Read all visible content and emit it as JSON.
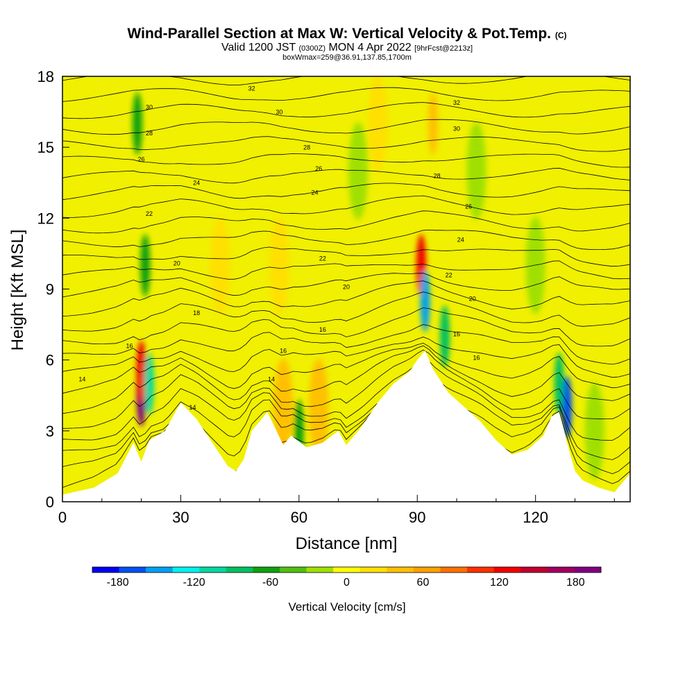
{
  "header": {
    "title": "Wind-Parallel Section at Max W: Vertical Velocity & Pot.Temp.",
    "title_mark": "(C)",
    "valid_prefix": "Valid 1200 JST",
    "valid_utc": "(0300Z)",
    "valid_date": "MON 4 Apr 2022",
    "fcst": "[9hrFcst@2213z]",
    "box_info": "boxWmax=259@36.91,137.85,1700m"
  },
  "chart_data": {
    "type": "heatmap",
    "xlabel": "Distance [nm]",
    "ylabel": "Height [Kft MSL]",
    "xlim": [
      0,
      144
    ],
    "ylim": [
      0,
      18
    ],
    "x_ticks": [
      0,
      30,
      60,
      90,
      120
    ],
    "y_ticks": [
      0,
      3,
      6,
      9,
      12,
      15,
      18
    ],
    "colorbar": {
      "label": "Vertical Velocity [cm/s]",
      "ticks": [
        -180,
        -120,
        -60,
        0,
        60,
        120,
        180
      ],
      "range": [
        -200,
        200
      ],
      "colors": [
        "#0000f0",
        "#0050f0",
        "#00a0f0",
        "#00f0f0",
        "#00d8a0",
        "#00c060",
        "#10a010",
        "#50c010",
        "#a0e000",
        "#ffff00",
        "#ffe000",
        "#ffc000",
        "#ffa000",
        "#ff7000",
        "#ff3000",
        "#f00000",
        "#c00030",
        "#a00060",
        "#800080"
      ]
    },
    "theta_contours": {
      "label_values": [
        14,
        16,
        18,
        20,
        22,
        24,
        26,
        28,
        30,
        32
      ]
    },
    "terrain_profile": {
      "x": [
        0,
        8,
        14,
        18,
        20,
        22,
        26,
        30,
        34,
        38,
        42,
        44,
        46,
        48,
        52,
        56,
        58,
        62,
        66,
        70,
        72,
        76,
        80,
        84,
        88,
        90,
        92,
        94,
        98,
        102,
        106,
        110,
        114,
        118,
        122,
        124,
        126,
        128,
        130,
        132,
        136,
        140,
        144
      ],
      "y": [
        0.3,
        0.6,
        1.2,
        2.5,
        1.7,
        2.6,
        3.0,
        4.2,
        3.5,
        2.5,
        1.5,
        1.3,
        1.8,
        3.0,
        3.8,
        2.4,
        2.8,
        2.3,
        2.5,
        3.0,
        2.4,
        3.2,
        4.2,
        5.0,
        5.5,
        6.0,
        6.4,
        5.6,
        4.6,
        4.0,
        3.4,
        2.6,
        2.0,
        2.2,
        2.8,
        3.6,
        3.8,
        2.5,
        1.3,
        0.9,
        0.6,
        0.4,
        1.2
      ]
    },
    "cells": [
      {
        "x": 20,
        "y": 4.5,
        "value": 180
      },
      {
        "x": 20,
        "y": 5.5,
        "value": 120
      },
      {
        "x": 22,
        "y": 5.0,
        "value": -100
      },
      {
        "x": 21,
        "y": 10.0,
        "value": -60
      },
      {
        "x": 19,
        "y": 16.0,
        "value": -60
      },
      {
        "x": 91,
        "y": 10.0,
        "value": 120
      },
      {
        "x": 92,
        "y": 8.5,
        "value": -140
      },
      {
        "x": 97,
        "y": 7.0,
        "value": -80
      },
      {
        "x": 128,
        "y": 4.0,
        "value": -160
      },
      {
        "x": 126,
        "y": 5.0,
        "value": -80
      },
      {
        "x": 60,
        "y": 3.0,
        "value": -60
      },
      {
        "x": 56,
        "y": 4.0,
        "value": 40
      },
      {
        "x": 65,
        "y": 4.0,
        "value": 40
      },
      {
        "x": 40,
        "y": 10.0,
        "value": 30
      },
      {
        "x": 55,
        "y": 10.0,
        "value": 30
      },
      {
        "x": 80,
        "y": 16.0,
        "value": 30
      },
      {
        "x": 94,
        "y": 16.0,
        "value": 50
      },
      {
        "x": 75,
        "y": 14.0,
        "value": -30
      },
      {
        "x": 105,
        "y": 14.0,
        "value": -30
      },
      {
        "x": 120,
        "y": 10.0,
        "value": -20
      },
      {
        "x": 135,
        "y": 3.0,
        "value": -20
      }
    ]
  }
}
